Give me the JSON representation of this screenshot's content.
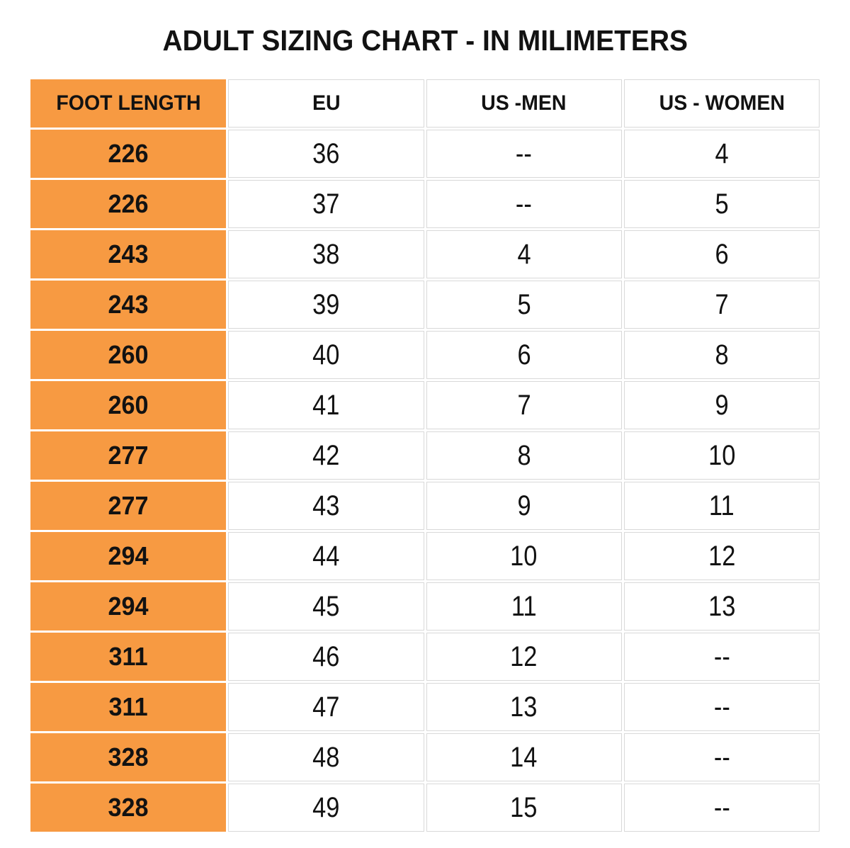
{
  "title": "ADULT SIZING CHART - IN MILIMETERS",
  "chart_data": {
    "type": "table",
    "title": "ADULT SIZING CHART - IN MILIMETERS",
    "columns": [
      "FOOT LENGTH",
      "EU",
      "US -MEN",
      "US - WOMEN"
    ],
    "rows": [
      {
        "foot_length": "226",
        "eu": "36",
        "us_men": "--",
        "us_women": "4"
      },
      {
        "foot_length": "226",
        "eu": "37",
        "us_men": "--",
        "us_women": "5"
      },
      {
        "foot_length": "243",
        "eu": "38",
        "us_men": "4",
        "us_women": "6"
      },
      {
        "foot_length": "243",
        "eu": "39",
        "us_men": "5",
        "us_women": "7"
      },
      {
        "foot_length": "260",
        "eu": "40",
        "us_men": "6",
        "us_women": "8"
      },
      {
        "foot_length": "260",
        "eu": "41",
        "us_men": "7",
        "us_women": "9"
      },
      {
        "foot_length": "277",
        "eu": "42",
        "us_men": "8",
        "us_women": "10"
      },
      {
        "foot_length": "277",
        "eu": "43",
        "us_men": "9",
        "us_women": "11"
      },
      {
        "foot_length": "294",
        "eu": "44",
        "us_men": "10",
        "us_women": "12"
      },
      {
        "foot_length": "294",
        "eu": "45",
        "us_men": "11",
        "us_women": "13"
      },
      {
        "foot_length": "311",
        "eu": "46",
        "us_men": "12",
        "us_women": "--"
      },
      {
        "foot_length": "311",
        "eu": "47",
        "us_men": "13",
        "us_women": "--"
      },
      {
        "foot_length": "328",
        "eu": "48",
        "us_men": "14",
        "us_women": "--"
      },
      {
        "foot_length": "328",
        "eu": "49",
        "us_men": "15",
        "us_women": "--"
      }
    ],
    "layout": {
      "first_column_highlighted": true,
      "grid": true
    }
  },
  "colors": {
    "accent_orange": "#F79A42",
    "grid_line": "#D9D9D9",
    "text": "#121212",
    "background": "#FFFFFF"
  }
}
